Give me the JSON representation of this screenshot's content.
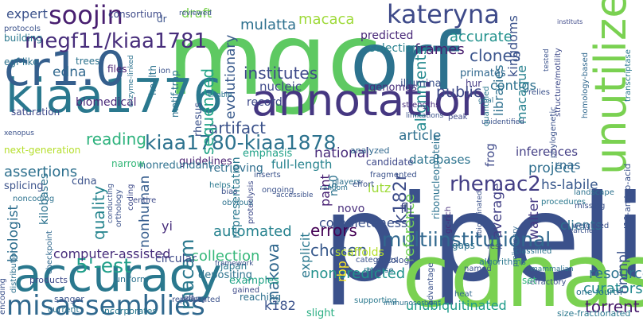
{
  "cloud": {
    "background": "#ffffff",
    "words": [
      {
        "text": "pipeline",
        "color": "#3b518b"
      },
      {
        "text": "mgc",
        "color": "#5ec962"
      },
      {
        "text": "orf",
        "color": "#2c728e"
      },
      {
        "text": "cdnas",
        "color": "#7ad151"
      },
      {
        "text": "kiaa1776",
        "color": "#2a788e"
      },
      {
        "text": "annotation",
        "color": "#453781"
      },
      {
        "text": "cr1.0",
        "color": "#355f8d"
      },
      {
        "text": "accuracy",
        "color": "#2a788e"
      },
      {
        "text": "misassemblies",
        "color": "#30688e"
      },
      {
        "text": "unutilized",
        "color": "#7ad151"
      },
      {
        "text": "soojin",
        "color": "#481f70"
      },
      {
        "text": "kateryna",
        "color": "#3e4a89"
      },
      {
        "text": "megf11/kiaa1781",
        "color": "#472d7b"
      },
      {
        "text": "kiaa1780-kiaa1878",
        "color": "#2c728e"
      },
      {
        "text": "multiinstitutional",
        "color": "#31688e"
      },
      {
        "text": "rhemac2",
        "color": "#433e85"
      },
      {
        "text": "5'-est",
        "color": "#1f9e89"
      },
      {
        "text": "reading",
        "color": "#2db27d"
      },
      {
        "text": "artifact",
        "color": "#3b528b"
      },
      {
        "text": "sequenced",
        "color": "#20a386"
      },
      {
        "text": "alignments",
        "color": "#23898e"
      },
      {
        "text": "quality",
        "color": "#25848e"
      },
      {
        "text": "collection",
        "color": "#35b779"
      },
      {
        "text": "macam",
        "color": "#2a788e"
      },
      {
        "text": "makova",
        "color": "#31688e"
      },
      {
        "text": "chosen",
        "color": "#38598c"
      },
      {
        "text": "nonpredicted",
        "color": "#21918c"
      },
      {
        "text": "unubiquitinated",
        "color": "#1e9b8a"
      },
      {
        "text": "torrent",
        "color": "#481a6c"
      },
      {
        "text": "resource",
        "color": "#2c728e"
      },
      {
        "text": "curators",
        "color": "#23888e"
      },
      {
        "text": "instituts",
        "color": "#3e4989"
      },
      {
        "text": "institutes",
        "color": "#3e4989"
      },
      {
        "text": "mulatta",
        "color": "#2d708e"
      },
      {
        "text": "macaca",
        "color": "#9fda3a"
      },
      {
        "text": "clones",
        "color": "#3a548c"
      },
      {
        "text": "frames",
        "color": "#481f70"
      },
      {
        "text": "accurate",
        "color": "#21918c"
      },
      {
        "text": "kingdoms",
        "color": "#3b528b"
      },
      {
        "text": "libraries",
        "color": "#2d708e"
      },
      {
        "text": "predicted",
        "color": "#482878"
      },
      {
        "text": "selection",
        "color": "#27808e"
      },
      {
        "text": "primates",
        "color": "#31688e"
      },
      {
        "text": "evolutionary",
        "color": "#38598c"
      },
      {
        "text": "public",
        "color": "#3e4a89"
      },
      {
        "text": "macaque",
        "color": "#26818e"
      },
      {
        "text": "contigs",
        "color": "#2d718e"
      },
      {
        "text": "project",
        "color": "#2e6e8e"
      },
      {
        "text": "hs-labile",
        "color": "#38588c"
      },
      {
        "text": "national",
        "color": "#472a7a"
      },
      {
        "text": "databases",
        "color": "#2c738e"
      },
      {
        "text": "article",
        "color": "#2e6f8e"
      },
      {
        "text": "reference",
        "color": "#73d056"
      },
      {
        "text": "k182r",
        "color": "#3d4d8a"
      },
      {
        "text": "paint",
        "color": "#482173"
      },
      {
        "text": "flj",
        "color": "#3f4788"
      },
      {
        "text": "average",
        "color": "#424086"
      },
      {
        "text": "walter",
        "color": "#443983"
      },
      {
        "text": "clients",
        "color": "#2c728e"
      },
      {
        "text": "hnrnpl",
        "color": "#3b528b"
      },
      {
        "text": "nonhuman",
        "color": "#365d8d"
      },
      {
        "text": "automated",
        "color": "#26828e"
      },
      {
        "text": "errors",
        "color": "#440154"
      },
      {
        "text": "assertions",
        "color": "#2d708e"
      },
      {
        "text": "biologist",
        "color": "#2e6e8e"
      },
      {
        "text": "expert",
        "color": "#3b528b"
      },
      {
        "text": "edna",
        "color": "#31688e"
      },
      {
        "text": "lutz",
        "color": "#9fda3a"
      },
      {
        "text": "yi",
        "color": "#472d7b"
      },
      {
        "text": "k182",
        "color": "#3b528b"
      },
      {
        "text": "rbp",
        "color": "#fde725"
      },
      {
        "text": "record",
        "color": "#3e4a89"
      },
      {
        "text": "nucleic",
        "color": "#3e4989"
      },
      {
        "text": "draft",
        "color": "#7ad151"
      },
      {
        "text": "explicit",
        "color": "#2a788e"
      },
      {
        "text": "completeness",
        "color": "#3b528b"
      },
      {
        "text": "scaffolds",
        "color": "#b5de2b"
      },
      {
        "text": "inferences",
        "color": "#433e85"
      },
      {
        "text": "rnas",
        "color": "#31688e"
      },
      {
        "text": "frog",
        "color": "#3e4989"
      },
      {
        "text": "novo",
        "color": "#472d7b"
      },
      {
        "text": "n50",
        "color": "#2c728e"
      },
      {
        "text": "full-length",
        "color": "#26828e"
      },
      {
        "text": "retrieving",
        "color": "#2e6e8e"
      },
      {
        "text": "guidelines",
        "color": "#481f70"
      },
      {
        "text": "representation",
        "color": "#2a788e"
      },
      {
        "text": "circular",
        "color": "#3e4a89"
      },
      {
        "text": "depositing",
        "color": "#2c728e"
      },
      {
        "text": "computer-assisted",
        "color": "#472d7b"
      },
      {
        "text": "examples",
        "color": "#20a386"
      },
      {
        "text": "slight",
        "color": "#27ad81"
      },
      {
        "text": "reaching",
        "color": "#2d708e"
      },
      {
        "text": "kilobases",
        "color": "#2c728e"
      },
      {
        "text": "splicing",
        "color": "#3b528b"
      },
      {
        "text": "cdna",
        "color": "#3b528b"
      },
      {
        "text": "biomedical",
        "color": "#482878"
      },
      {
        "text": "saturation",
        "color": "#3e4989"
      },
      {
        "text": "motif-trap",
        "color": "#2c728e"
      },
      {
        "text": "rhesus",
        "color": "#3b528b"
      },
      {
        "text": "emphasis",
        "color": "#1fa187"
      },
      {
        "text": "nonredundant",
        "color": "#2d708e"
      },
      {
        "text": "narrow",
        "color": "#35b779"
      },
      {
        "text": "health",
        "color": "#2c728e"
      },
      {
        "text": "japan",
        "color": "#2a788e"
      },
      {
        "text": "genomes",
        "color": "#472d7b"
      },
      {
        "text": "illumina",
        "color": "#3b528b"
      },
      {
        "text": "hur",
        "color": "#443983"
      },
      {
        "text": "ribonucleoprotein",
        "color": "#2c728e"
      },
      {
        "text": "analyzed",
        "color": "#31688e"
      },
      {
        "text": "next-generation",
        "color": "#b5de2b"
      },
      {
        "text": "building",
        "color": "#2a788e"
      },
      {
        "text": "protocols",
        "color": "#3b528b"
      },
      {
        "text": "egf-like",
        "color": "#2c728e"
      },
      {
        "text": "consortium",
        "color": "#3e4a89"
      },
      {
        "text": "trees",
        "color": "#2c728e"
      },
      {
        "text": "files",
        "color": "#481f70"
      },
      {
        "text": "dr",
        "color": "#3b528b"
      },
      {
        "text": "homology-based",
        "color": "#31688e"
      },
      {
        "text": "phylogenetic",
        "color": "#3b528b"
      },
      {
        "text": "structure/motility",
        "color": "#3e4a89"
      },
      {
        "text": "transcriptase",
        "color": "#2a788e"
      },
      {
        "text": "l10-amino-acid",
        "color": "#3b528b"
      },
      {
        "text": "landscape",
        "color": "#2c728e"
      },
      {
        "text": "procedures",
        "color": "#2a788e"
      },
      {
        "text": "weighted",
        "color": "#3b528b"
      },
      {
        "text": "classified",
        "color": "#2c728e"
      },
      {
        "text": "ontology",
        "color": "#3b528b"
      },
      {
        "text": "gc-rich",
        "color": "#472d7b"
      },
      {
        "text": "reverse",
        "color": "#31688e"
      },
      {
        "text": "categories",
        "color": "#3b528b"
      },
      {
        "text": "supporting",
        "color": "#2a788e"
      },
      {
        "text": "immunosorbent",
        "color": "#2d708e"
      },
      {
        "text": "refractory",
        "color": "#3b528b"
      },
      {
        "text": "gaps",
        "color": "#2c728e"
      },
      {
        "text": "rest",
        "color": "#3e4a89"
      },
      {
        "text": "algorithms",
        "color": "#2a788e"
      },
      {
        "text": "named",
        "color": "#3b528b"
      },
      {
        "text": "advantage",
        "color": "#3b528b"
      },
      {
        "text": "heat",
        "color": "#31688e"
      },
      {
        "text": "set",
        "color": "#35b779"
      },
      {
        "text": "one-fourth",
        "color": "#2c728e"
      },
      {
        "text": "size-fractionated",
        "color": "#2a788e"
      },
      {
        "text": "products",
        "color": "#3e4989"
      },
      {
        "text": "uniform",
        "color": "#2c728e"
      },
      {
        "text": "sanger",
        "color": "#3b528b"
      },
      {
        "text": "current",
        "color": "#2c728e"
      },
      {
        "text": "distribution",
        "color": "#2d708e"
      },
      {
        "text": "encoding",
        "color": "#3b528b"
      },
      {
        "text": "incorporates",
        "color": "#2a788e"
      },
      {
        "text": "represented",
        "color": "#3b528b"
      },
      {
        "text": "framework",
        "color": "#3b528b"
      },
      {
        "text": "entire",
        "color": "#3e4a89"
      },
      {
        "text": "noncoding",
        "color": "#2c728e"
      },
      {
        "text": "checkpoint",
        "color": "#31688e"
      },
      {
        "text": "carry",
        "color": "#3b528b"
      },
      {
        "text": "left",
        "color": "#3b528b"
      },
      {
        "text": "gained",
        "color": "#3e4a89"
      },
      {
        "text": "inserts",
        "color": "#3b528b"
      },
      {
        "text": "helps",
        "color": "#2a788e"
      },
      {
        "text": "bias",
        "color": "#3b528b"
      },
      {
        "text": "ongoing",
        "color": "#3b528b"
      },
      {
        "text": "obvious",
        "color": "#2c728e"
      },
      {
        "text": "accessible",
        "color": "#3b528b"
      },
      {
        "text": "fragmented",
        "color": "#3b528b"
      },
      {
        "text": "players",
        "color": "#2d708e"
      },
      {
        "text": "effort",
        "color": "#3b528b"
      },
      {
        "text": "preliminary",
        "color": "#31688e"
      },
      {
        "text": "strengths",
        "color": "#472d7b"
      },
      {
        "text": "limitations",
        "color": "#3b528b"
      },
      {
        "text": "peak",
        "color": "#3e4989"
      },
      {
        "text": "goal",
        "color": "#2c728e"
      },
      {
        "text": "relies",
        "color": "#3b528b"
      },
      {
        "text": "missing",
        "color": "#3b528b"
      },
      {
        "text": "unidentified",
        "color": "#3b528b"
      },
      {
        "text": "quantified",
        "color": "#2a788e"
      },
      {
        "text": "ion",
        "color": "#3b528b"
      },
      {
        "text": "enzyme-linked",
        "color": "#2c728e"
      },
      {
        "text": "xenopus",
        "color": "#3b528b"
      },
      {
        "text": "orthology",
        "color": "#3b528b"
      },
      {
        "text": "coding",
        "color": "#3e4a89"
      },
      {
        "text": "conducting",
        "color": "#3b528b"
      },
      {
        "text": "proteolysis",
        "color": "#3e4a89"
      },
      {
        "text": "ubiquitinated",
        "color": "#3b528b"
      },
      {
        "text": "mammalian",
        "color": "#2c728e"
      },
      {
        "text": "searches",
        "color": "#3b528b"
      },
      {
        "text": "tested",
        "color": "#3b528b"
      },
      {
        "text": "enable",
        "color": "#2a788e"
      },
      {
        "text": "reviewed",
        "color": "#3b528b"
      },
      {
        "text": "random",
        "color": "#2c728e"
      },
      {
        "text": "candidate",
        "color": "#3e4989"
      }
    ]
  }
}
